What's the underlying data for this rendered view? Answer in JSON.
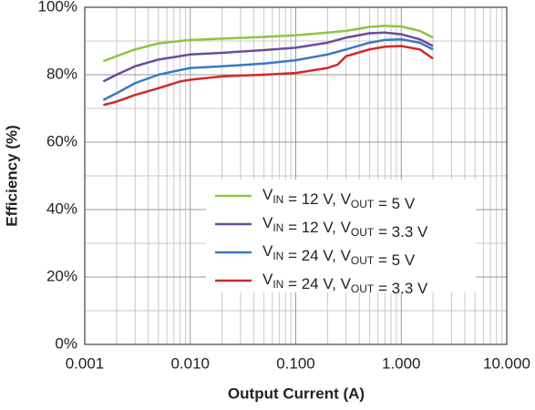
{
  "chart_data": {
    "type": "line",
    "xlabel": "Output Current (A)",
    "ylabel": "Efficiency (%)",
    "xscale": "log",
    "xlim": [
      0.001,
      10
    ],
    "ylim": [
      0,
      100
    ],
    "xticks": [
      0.001,
      {
        "value": 0.01,
        "label": "0.010"
      },
      {
        "value": 0.1,
        "label": "0.100"
      },
      {
        "value": 1,
        "label": "1.000"
      },
      {
        "value": 10,
        "label": "10.000"
      }
    ],
    "yticks": [
      {
        "value": 0,
        "label": "0%"
      },
      {
        "value": 20,
        "label": "20%"
      },
      {
        "value": 40,
        "label": "40%"
      },
      {
        "value": 60,
        "label": "60%"
      },
      {
        "value": 80,
        "label": "80%"
      },
      {
        "value": 100,
        "label": "100%"
      }
    ],
    "grid": true,
    "minor_grid": true,
    "series": [
      {
        "name": "VIN = 12 V, VOUT = 5 V",
        "color": "#8cc63f",
        "x": [
          0.0015,
          0.002,
          0.003,
          0.005,
          0.008,
          0.01,
          0.02,
          0.05,
          0.1,
          0.2,
          0.3,
          0.5,
          0.7,
          1.0,
          1.5,
          2
        ],
        "values": [
          84,
          85.5,
          87.5,
          89.3,
          90,
          90.3,
          90.7,
          91.2,
          91.7,
          92.5,
          93,
          94.2,
          94.5,
          94.3,
          93,
          91
        ]
      },
      {
        "name": "VIN = 12 V, VOUT = 3.3 V",
        "color": "#6b4c9a",
        "x": [
          0.0015,
          0.002,
          0.003,
          0.005,
          0.008,
          0.01,
          0.02,
          0.05,
          0.1,
          0.2,
          0.3,
          0.5,
          0.7,
          1.0,
          1.5,
          2
        ],
        "values": [
          78,
          80,
          82.5,
          84.5,
          85.5,
          86,
          86.5,
          87.3,
          88,
          89.5,
          91,
          92.3,
          92.5,
          92,
          90.5,
          88.5
        ]
      },
      {
        "name": "VIN = 24 V, VOUT = 5 V",
        "color": "#3a78c3",
        "x": [
          0.0015,
          0.002,
          0.003,
          0.005,
          0.007,
          0.01,
          0.02,
          0.05,
          0.1,
          0.2,
          0.3,
          0.5,
          0.7,
          1.0,
          1.5,
          2
        ],
        "values": [
          72.5,
          74.5,
          77.5,
          80,
          81,
          82,
          82.5,
          83.3,
          84.3,
          86,
          87.5,
          89.5,
          90.3,
          90.5,
          89.5,
          87.5
        ]
      },
      {
        "name": "VIN = 24 V, VOUT = 3.3 V",
        "color": "#d12a2a",
        "x": [
          0.0015,
          0.002,
          0.003,
          0.005,
          0.008,
          0.01,
          0.02,
          0.05,
          0.1,
          0.2,
          0.25,
          0.3,
          0.5,
          0.7,
          1.0,
          1.5,
          2
        ],
        "values": [
          71,
          72,
          74,
          76,
          78,
          78.5,
          79.5,
          80,
          80.5,
          82,
          83,
          85.5,
          87.5,
          88.3,
          88.5,
          87.5,
          84.8
        ]
      }
    ]
  }
}
